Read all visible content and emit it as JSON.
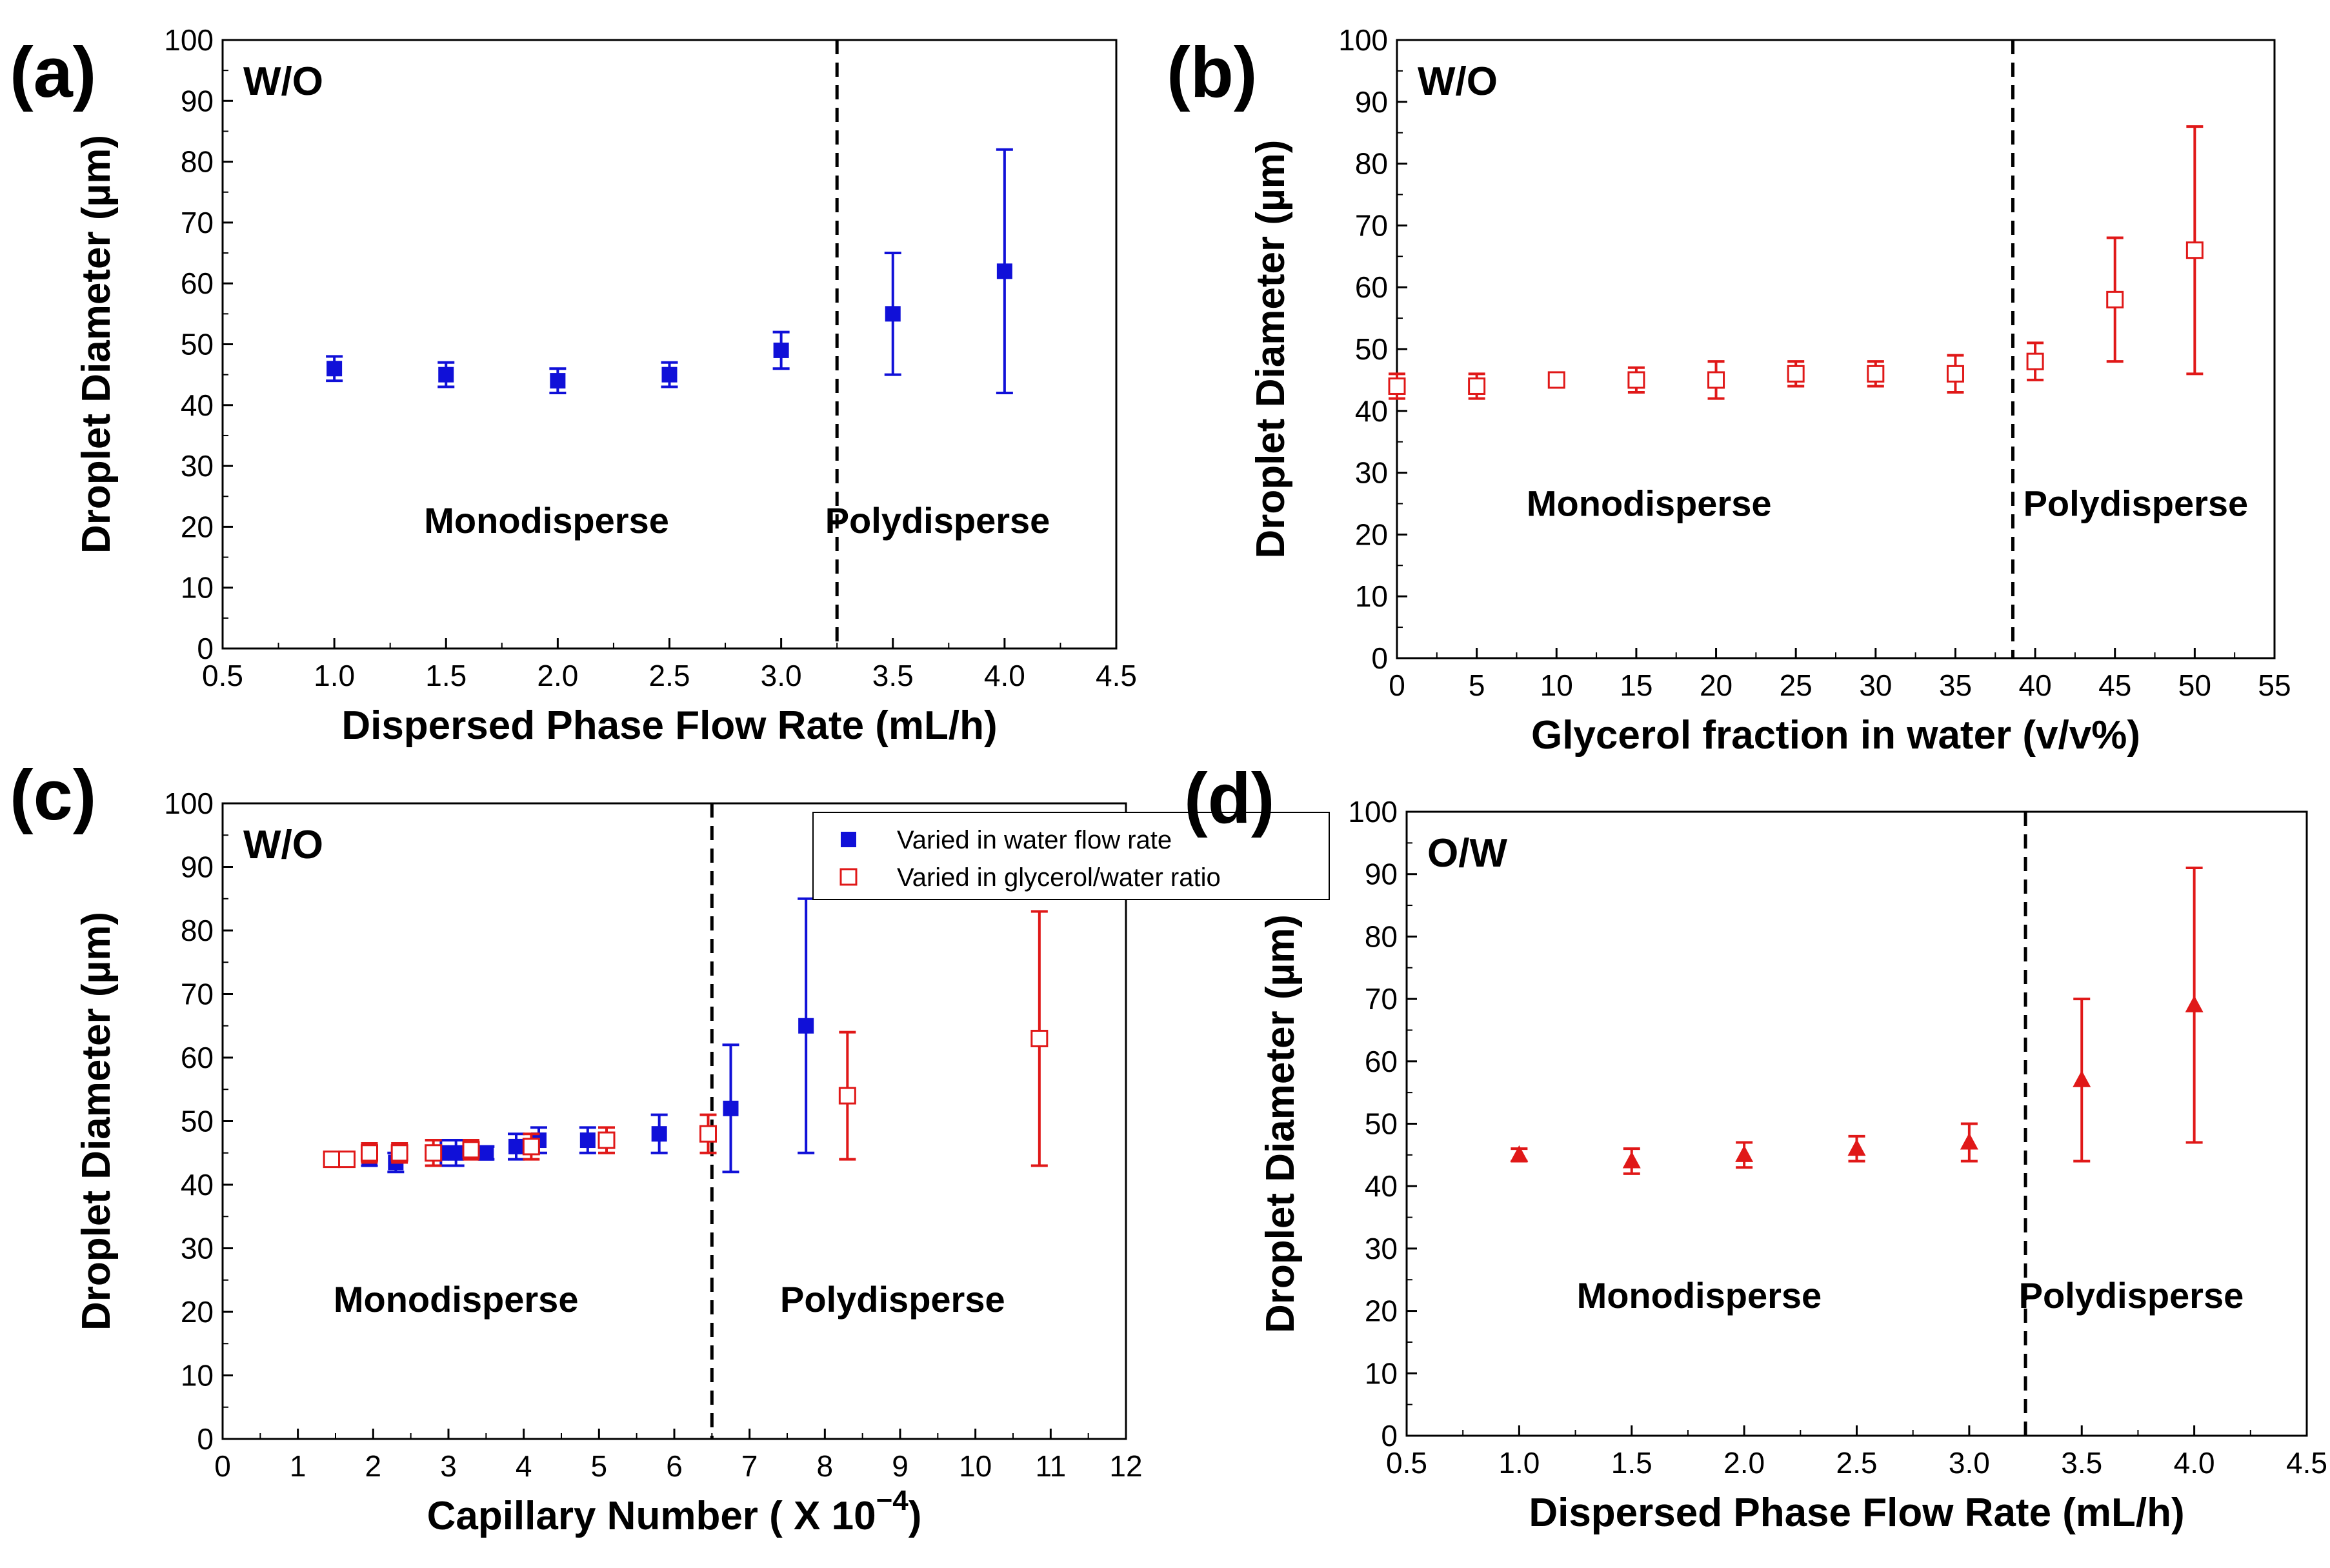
{
  "chart_data": [
    {
      "type": "scatter",
      "panel_label": "(a)",
      "phase_label": "W/O",
      "xlabel": "Dispersed Phase Flow Rate (mL/h)",
      "ylabel": "Droplet Diameter (µm)",
      "xlim": [
        0.5,
        4.5
      ],
      "ylim": [
        0,
        100
      ],
      "xticks": [
        "0.5",
        "1.0",
        "1.5",
        "2.0",
        "2.5",
        "3.0",
        "3.5",
        "4.0",
        "4.5"
      ],
      "yticks": [
        "0",
        "10",
        "20",
        "30",
        "40",
        "50",
        "60",
        "70",
        "80",
        "90",
        "100"
      ],
      "divider_x": 3.25,
      "region_labels": [
        {
          "text": "Monodisperse",
          "x": 1.95,
          "y": 19
        },
        {
          "text": "Polydisperse",
          "x": 3.7,
          "y": 19
        }
      ],
      "series": [
        {
          "name": "W/O",
          "color": "#1010d8",
          "marker": "square-filled",
          "x": [
            1.0,
            1.5,
            2.0,
            2.5,
            3.0,
            3.5,
            4.0
          ],
          "y": [
            46,
            45,
            44,
            45,
            49,
            55,
            62
          ],
          "err": [
            2,
            2,
            2,
            2,
            3,
            10,
            20
          ]
        }
      ]
    },
    {
      "type": "scatter",
      "panel_label": "(b)",
      "phase_label": "W/O",
      "xlabel": "Glycerol fraction in water (v/v%)",
      "ylabel": "Droplet Diameter (µm)",
      "xlim": [
        0,
        55
      ],
      "ylim": [
        0,
        100
      ],
      "xticks": [
        "0",
        "5",
        "10",
        "15",
        "20",
        "25",
        "30",
        "35",
        "40",
        "45",
        "50",
        "55"
      ],
      "yticks": [
        "0",
        "10",
        "20",
        "30",
        "40",
        "50",
        "60",
        "70",
        "80",
        "90",
        "100"
      ],
      "divider_x": 38.6,
      "region_labels": [
        {
          "text": "Monodisperse",
          "x": 15.8,
          "y": 23
        },
        {
          "text": "Polydisperse",
          "x": 46.3,
          "y": 23
        }
      ],
      "series": [
        {
          "name": "W/O",
          "color": "#e01818",
          "marker": "square-open",
          "x": [
            0,
            5,
            10,
            15,
            20,
            25,
            30,
            35,
            40,
            45,
            50
          ],
          "y": [
            44,
            44,
            45,
            45,
            45,
            46,
            46,
            46,
            48,
            58,
            66
          ],
          "err": [
            2,
            2,
            1,
            2,
            3,
            2,
            2,
            3,
            3,
            10,
            20
          ]
        }
      ]
    },
    {
      "type": "scatter",
      "panel_label": "(c)",
      "phase_label": "W/O",
      "xlabel": "Capillary Number ( X 10",
      "xlabel_exponent": "−4",
      "xlabel_suffix": ")",
      "ylabel": "Droplet Diameter (µm)",
      "xlim": [
        0,
        12
      ],
      "ylim": [
        0,
        100
      ],
      "xticks": [
        "0",
        "1",
        "2",
        "3",
        "4",
        "5",
        "6",
        "7",
        "8",
        "9",
        "10",
        "11",
        "12"
      ],
      "yticks": [
        "0",
        "10",
        "20",
        "30",
        "40",
        "50",
        "60",
        "70",
        "80",
        "90",
        "100"
      ],
      "divider_x": 6.5,
      "region_labels": [
        {
          "text": "Monodisperse",
          "x": 3.1,
          "y": 20
        },
        {
          "text": "Polydisperse",
          "x": 8.9,
          "y": 20
        }
      ],
      "legend": {
        "position": "top-right"
      },
      "series": [
        {
          "name": "Varied in water flow rate",
          "color": "#1010d8",
          "marker": "square-filled",
          "x": [
            1.95,
            2.3,
            2.9,
            3.1,
            3.5,
            3.9,
            4.2,
            4.85,
            5.8,
            6.75,
            7.75
          ],
          "y": [
            44,
            43.5,
            45,
            45,
            45,
            46,
            47,
            47,
            48,
            52,
            65
          ],
          "err": [
            1,
            1.5,
            2,
            2,
            1,
            2,
            2,
            2,
            3,
            10,
            20
          ]
        },
        {
          "name": "Varied in glycerol/water ratio",
          "color": "#e01818",
          "marker": "square-open",
          "x": [
            1.45,
            1.65,
            1.95,
            2.35,
            2.8,
            3.3,
            4.1,
            5.1,
            6.45,
            8.3,
            10.85
          ],
          "y": [
            44,
            44,
            45,
            45,
            45,
            45.5,
            46,
            47,
            48,
            54,
            63
          ],
          "err": [
            0.5,
            0.5,
            1.5,
            1.5,
            2,
            1.5,
            2,
            2,
            3,
            10,
            20
          ]
        }
      ]
    },
    {
      "type": "scatter",
      "panel_label": "(d)",
      "phase_label": "O/W",
      "xlabel": "Dispersed Phase Flow Rate (mL/h)",
      "ylabel": "Droplet Diameter (µm)",
      "xlim": [
        0.5,
        4.5
      ],
      "ylim": [
        0,
        100
      ],
      "xticks": [
        "0.5",
        "1.0",
        "1.5",
        "2.0",
        "2.5",
        "3.0",
        "3.5",
        "4.0",
        "4.5"
      ],
      "yticks": [
        "0",
        "10",
        "20",
        "30",
        "40",
        "50",
        "60",
        "70",
        "80",
        "90",
        "100"
      ],
      "divider_x": 3.25,
      "region_labels": [
        {
          "text": "Monodisperse",
          "x": 1.8,
          "y": 20.5
        },
        {
          "text": "Polydisperse",
          "x": 3.72,
          "y": 20.5
        }
      ],
      "series": [
        {
          "name": "O/W",
          "color": "#e01818",
          "marker": "triangle-filled",
          "x": [
            1.0,
            1.5,
            2.0,
            2.5,
            3.0,
            3.5,
            4.0
          ],
          "y": [
            45,
            44,
            45,
            46,
            47,
            57,
            69
          ],
          "err": [
            1,
            2,
            2,
            2,
            3,
            13,
            22
          ]
        }
      ]
    }
  ]
}
